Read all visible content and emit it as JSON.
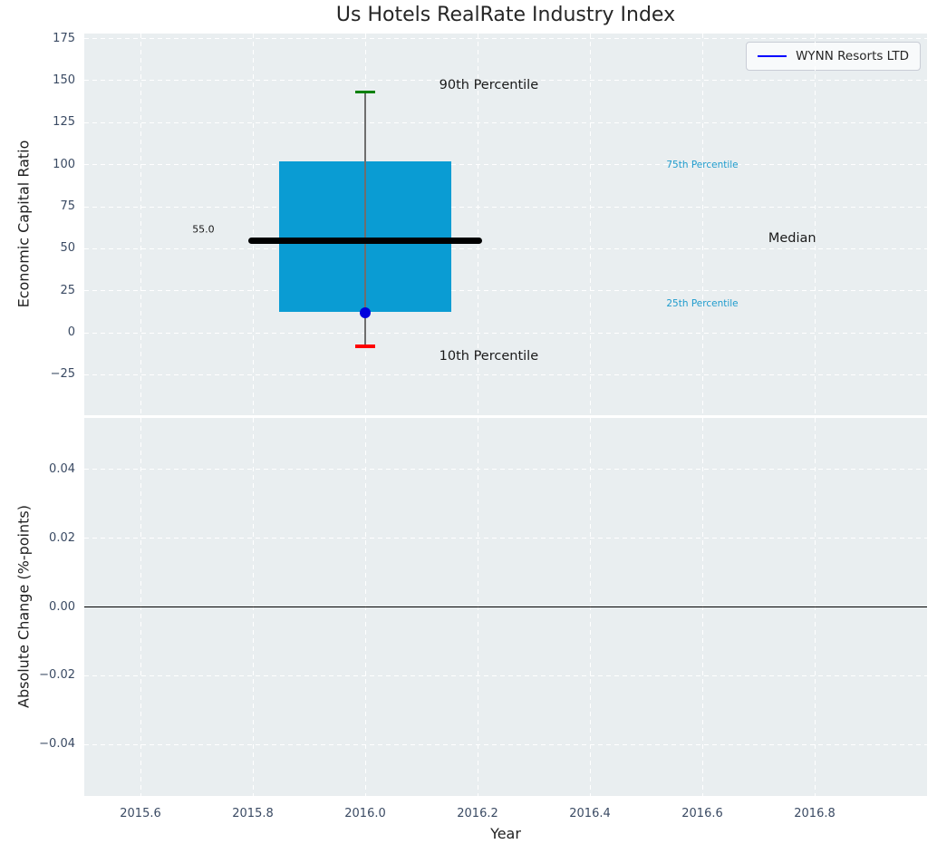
{
  "title": "Us Hotels RealRate Industry Index",
  "legend": {
    "label": "WYNN Resorts LTD",
    "line_color": "#0000ff"
  },
  "colors": {
    "figure_bg": "#ffffff",
    "axes_bg": "#e9eef0",
    "grid": "#ffffff",
    "tick_label": "#3a4a63",
    "text": "#1f1f1f",
    "box_fill": "#0a9cd3",
    "median_line": "#000000",
    "whisker": "#6e6e6e",
    "cap_90th": "#008000",
    "cap_10th": "#ff0000",
    "data_point": "#0000dd",
    "percentile_label": "#209ccd",
    "zero_line": "#000000"
  },
  "chart_data": [
    {
      "type": "boxplot",
      "title": "Us Hotels RealRate Industry Index",
      "ylabel": "Economic Capital Ratio",
      "xlim": [
        2015.5,
        2017.0
      ],
      "ylim": [
        -49,
        178
      ],
      "grid": "white dashed",
      "legend_position": "upper right",
      "xticks": [
        2015.6,
        2015.8,
        2016.0,
        2016.2,
        2016.4,
        2016.6,
        2016.8
      ],
      "yticks": [
        175,
        150,
        125,
        100,
        75,
        50,
        25,
        0,
        -25
      ],
      "ytick_labels": [
        "175",
        "150",
        "125",
        "100",
        "75",
        "50",
        "25",
        "0",
        "−25"
      ],
      "box": {
        "x": 2016.0,
        "p90": 143,
        "q3": 102,
        "median": 55.0,
        "q1": 12.5,
        "p10": -8,
        "box_halfwidth": 0.1525,
        "median_halfwidth": 0.2075,
        "cap_halfwidth": 0.018
      },
      "series": [
        {
          "name": "WYNN Resorts LTD",
          "x": [
            2016.0
          ],
          "y": [
            12
          ],
          "color": "#0000dd",
          "marker": "circle"
        }
      ],
      "annotations": [
        {
          "name": "90th-percentile-label",
          "text": "90th Percentile",
          "x": 2016.22,
          "y": 147.5,
          "color": "#1a1a1a",
          "size": 14.5
        },
        {
          "name": "10th-percentile-label",
          "text": "10th Percentile",
          "x": 2016.22,
          "y": -14,
          "color": "#1a1a1a",
          "size": 14.5
        },
        {
          "name": "median-label",
          "text": "Median",
          "x": 2016.76,
          "y": 56,
          "color": "#1a1a1a",
          "size": 14.5
        },
        {
          "name": "75th-percentile-label",
          "text": "75th Percentile",
          "x": 2016.6,
          "y": 100,
          "color": "#209ccd",
          "size": 10.5
        },
        {
          "name": "25th-percentile-label",
          "text": "25th Percentile",
          "x": 2016.6,
          "y": 17.5,
          "color": "#209ccd",
          "size": 10.5
        },
        {
          "name": "median-value-label",
          "text": "55.0",
          "x": 2015.712,
          "y": 61.5,
          "color": "#1a1a1a",
          "size": 11
        }
      ]
    },
    {
      "type": "line",
      "ylabel": "Absolute Change (%-points)",
      "xlabel": "Year",
      "xlim": [
        2015.5,
        2017.0
      ],
      "ylim": [
        -0.055,
        0.055
      ],
      "grid": "white dashed",
      "xticks": [
        2015.6,
        2015.8,
        2016.0,
        2016.2,
        2016.4,
        2016.6,
        2016.8
      ],
      "xtick_labels": [
        "2015.6",
        "2015.8",
        "2016.0",
        "2016.2",
        "2016.4",
        "2016.6",
        "2016.8"
      ],
      "yticks": [
        0.04,
        0.02,
        0.0,
        -0.02,
        -0.04
      ],
      "ytick_labels": [
        "0.04",
        "0.02",
        "0.00",
        "−0.02",
        "−0.04"
      ],
      "zero_line": 0.0,
      "series": []
    }
  ]
}
